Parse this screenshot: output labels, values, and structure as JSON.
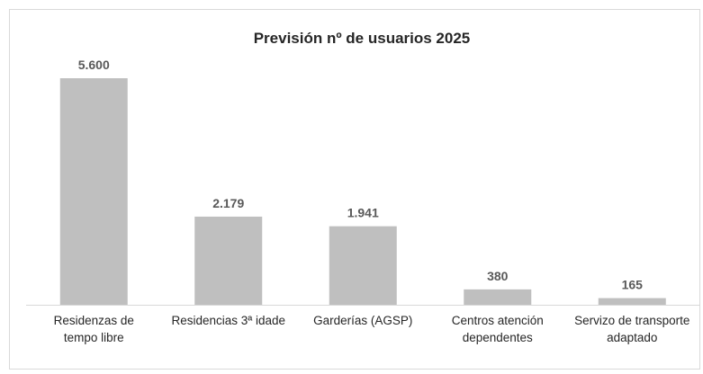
{
  "chart_data": {
    "type": "bar",
    "title": "Previsión nº de usuarios 2025",
    "categories": [
      "Residenzas de tempo libre",
      "Residencias 3ª idade",
      "Garderías (AGSP)",
      "Centros atención dependentes",
      "Servizo de transporte adaptado"
    ],
    "values": [
      5600,
      2179,
      1941,
      380,
      165
    ],
    "value_labels": [
      "5.600",
      "2.179",
      "1.941",
      "380",
      "165"
    ],
    "color": "#bfbfbf"
  }
}
